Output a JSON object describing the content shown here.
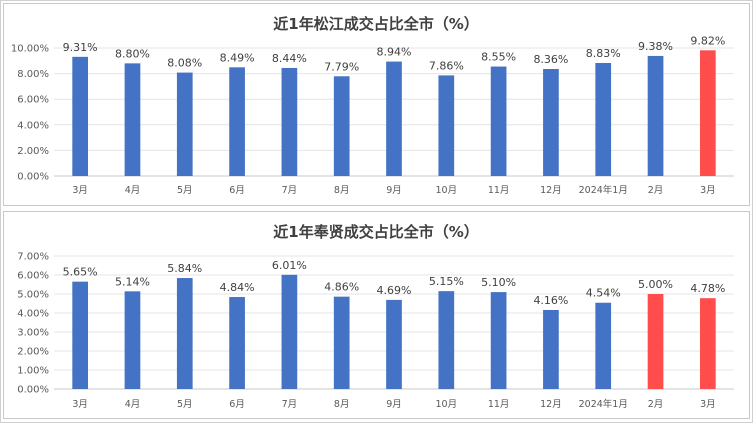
{
  "chart_data": [
    {
      "type": "bar",
      "title": "近1年松江成交占比全市（%）",
      "categories": [
        "3月",
        "4月",
        "5月",
        "6月",
        "7月",
        "8月",
        "9月",
        "10月",
        "11月",
        "12月",
        "2024年1月",
        "2月",
        "3月"
      ],
      "values": [
        9.31,
        8.8,
        8.08,
        8.49,
        8.44,
        7.79,
        8.94,
        7.86,
        8.55,
        8.36,
        8.83,
        9.38,
        9.82
      ],
      "data_labels": [
        "9.31%",
        "8.80%",
        "8.08%",
        "8.49%",
        "8.44%",
        "7.79%",
        "8.94%",
        "7.86%",
        "8.55%",
        "8.36%",
        "8.83%",
        "9.38%",
        "9.82%"
      ],
      "y_ticks": [
        "0.00%",
        "2.00%",
        "4.00%",
        "6.00%",
        "8.00%",
        "10.00%"
      ],
      "ylim": [
        0,
        10
      ],
      "highlighted": [
        12
      ],
      "grid": true,
      "legend": "none"
    },
    {
      "type": "bar",
      "title": "近1年奉贤成交占比全市（%）",
      "categories": [
        "3月",
        "4月",
        "5月",
        "6月",
        "7月",
        "8月",
        "9月",
        "10月",
        "11月",
        "12月",
        "2024年1月",
        "2月",
        "3月"
      ],
      "values": [
        5.65,
        5.14,
        5.84,
        4.84,
        6.01,
        4.86,
        4.69,
        5.15,
        5.1,
        4.16,
        4.54,
        5.0,
        4.78
      ],
      "data_labels": [
        "5.65%",
        "5.14%",
        "5.84%",
        "4.84%",
        "6.01%",
        "4.86%",
        "4.69%",
        "5.15%",
        "5.10%",
        "4.16%",
        "4.54%",
        "5.00%",
        "4.78%"
      ],
      "y_ticks": [
        "0.00%",
        "1.00%",
        "2.00%",
        "3.00%",
        "4.00%",
        "5.00%",
        "6.00%",
        "7.00%"
      ],
      "ylim": [
        0,
        7
      ],
      "highlighted": [
        11,
        12
      ],
      "grid": true,
      "legend": "none"
    }
  ],
  "colors": {
    "bar": "#4472C4",
    "highlight": "#FF4D4D"
  }
}
